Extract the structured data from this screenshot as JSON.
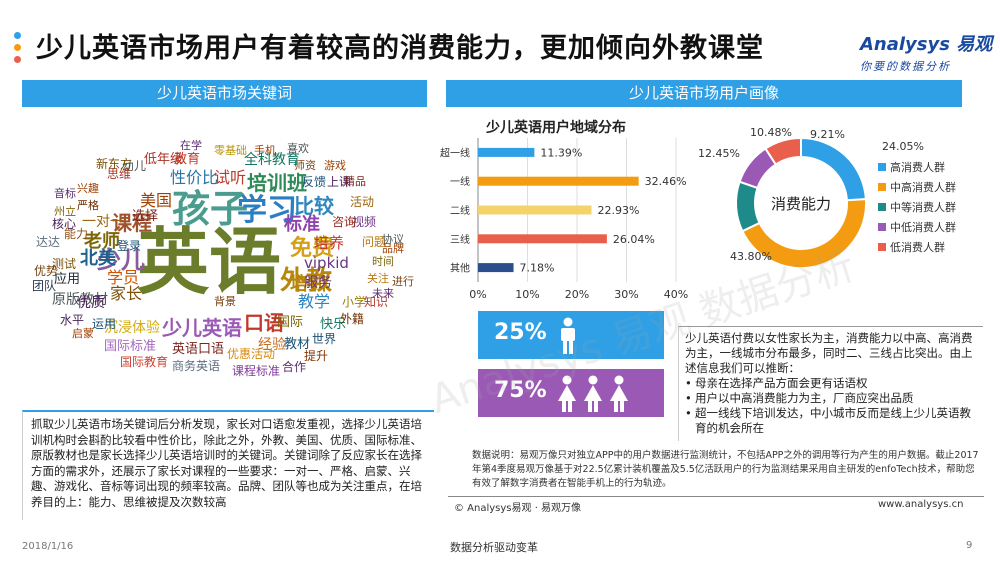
{
  "page": {
    "title": "少儿英语市场用户有着较高的消费能力，更加倾向外教课堂",
    "date": "2018/1/16",
    "slogan": "数据分析驱动变革",
    "page_number": "9"
  },
  "logo": {
    "brand": "Analysys 易观",
    "tagline": "你要的数据分析"
  },
  "watermark": "Analysys 易观 数据分析",
  "left_section": {
    "header": "少儿英语市场关键词",
    "description": "抓取少儿英语市场关键词后分析发现，家长对口语愈发重视，选择少儿英语培训机构时会斟酌比较看中性价比，除此之外，外教、美国、优质、国际标准、原版教材也是家长选择少儿英语培训时的关键词。关键词除了反应家长在选择方面的需求外，还展示了家长对课程的一些要求：一对一、严格、启蒙、兴趣、游戏化、音标等词出现的频率较高。品牌、团队等也成为关注重点，在培养目的上：能力、思维被提及次数较高"
  },
  "wordcloud": [
    {
      "text": "英语",
      "color": "#6b7d2a"
    },
    {
      "text": "孩子",
      "color": "#4a9c8f"
    },
    {
      "text": "学习",
      "color": "#2b7fc0"
    },
    {
      "text": "外教",
      "color": "#b8860b"
    },
    {
      "text": "少儿",
      "color": "#8a5a9e"
    },
    {
      "text": "课程",
      "color": "#a0522d"
    },
    {
      "text": "少儿英语",
      "color": "#9b59b6"
    },
    {
      "text": "口语",
      "color": "#c0392b"
    },
    {
      "text": "免费",
      "color": "#d4a017"
    },
    {
      "text": "比较",
      "color": "#2e86c1"
    },
    {
      "text": "培训班",
      "color": "#2e8b57"
    },
    {
      "text": "标准",
      "color": "#8e44ad"
    },
    {
      "text": "培训",
      "color": "#b8860b"
    },
    {
      "text": "老师",
      "color": "#7d6608"
    },
    {
      "text": "北美",
      "color": "#1f618d"
    },
    {
      "text": "美国",
      "color": "#a04000"
    },
    {
      "text": "性价比",
      "color": "#2874a6"
    },
    {
      "text": "试听",
      "color": "#c0392b"
    },
    {
      "text": "全科教育",
      "color": "#117864"
    },
    {
      "text": "vipkid",
      "color": "#6c3483"
    },
    {
      "text": "培养",
      "color": "#c0392b"
    },
    {
      "text": "服务",
      "color": "#6c3483"
    },
    {
      "text": "教学",
      "color": "#2e86c1"
    },
    {
      "text": "家长",
      "color": "#7e5109"
    },
    {
      "text": "学员",
      "color": "#d35400"
    },
    {
      "text": "原版教材",
      "color": "#4d5656"
    },
    {
      "text": "沉浸体验",
      "color": "#d4ac0d"
    },
    {
      "text": "英语口语",
      "color": "#7b241c"
    },
    {
      "text": "国际标准",
      "color": "#a569bd"
    },
    {
      "text": "国际教育",
      "color": "#cb4335"
    },
    {
      "text": "商务英语",
      "color": "#5d6d7e"
    },
    {
      "text": "课程标准",
      "color": "#7d3c98"
    },
    {
      "text": "优惠活动",
      "color": "#d68910"
    },
    {
      "text": "经验",
      "color": "#ca6f1e"
    },
    {
      "text": "教材",
      "color": "#1a5276"
    },
    {
      "text": "国际",
      "color": "#7d6608"
    },
    {
      "text": "快乐",
      "color": "#117a65"
    },
    {
      "text": "外籍",
      "color": "#6e2c00"
    },
    {
      "text": "小学",
      "color": "#9a7d0a"
    },
    {
      "text": "知识",
      "color": "#b03a2e"
    },
    {
      "text": "世界",
      "color": "#1b4f72"
    },
    {
      "text": "提升",
      "color": "#873600"
    },
    {
      "text": "合作",
      "color": "#5b2c6f"
    },
    {
      "text": "优质",
      "color": "#4a235a"
    },
    {
      "text": "应用",
      "color": "#1b2631"
    },
    {
      "text": "测试",
      "color": "#7e5109"
    },
    {
      "text": "能力",
      "color": "#935116"
    },
    {
      "text": "达达",
      "color": "#5d6d7e"
    },
    {
      "text": "核心",
      "color": "#4a235a"
    },
    {
      "text": "优势",
      "color": "#784212"
    },
    {
      "text": "团队",
      "color": "#2c3e50"
    },
    {
      "text": "兴趣",
      "color": "#a04000"
    },
    {
      "text": "音标",
      "color": "#5b2c6f"
    },
    {
      "text": "严格",
      "color": "#6e2c00"
    },
    {
      "text": "思维",
      "color": "#a93226"
    },
    {
      "text": "登录",
      "color": "#1a5276"
    },
    {
      "text": "选择",
      "color": "#7b241c"
    },
    {
      "text": "一对一",
      "color": "#9c640c"
    },
    {
      "text": "幼儿",
      "color": "#4d5656"
    },
    {
      "text": "新东方",
      "color": "#7e5109"
    },
    {
      "text": "低年级",
      "color": "#a93226"
    },
    {
      "text": "教育",
      "color": "#c0392b"
    },
    {
      "text": "在学",
      "color": "#5b2c6f"
    },
    {
      "text": "零基础",
      "color": "#b7950b"
    },
    {
      "text": "手机",
      "color": "#a04000"
    },
    {
      "text": "师资",
      "color": "#784212"
    },
    {
      "text": "游戏",
      "color": "#a04000"
    },
    {
      "text": "反馈",
      "color": "#1a5276"
    },
    {
      "text": "上课",
      "color": "#4a235a"
    },
    {
      "text": "精品",
      "color": "#7b241c"
    },
    {
      "text": "活动",
      "color": "#9c640c"
    },
    {
      "text": "视频",
      "color": "#6c3483"
    },
    {
      "text": "咨询",
      "color": "#922b21"
    },
    {
      "text": "问题",
      "color": "#b9770e"
    },
    {
      "text": "协议",
      "color": "#4d5656"
    },
    {
      "text": "时间",
      "color": "#7d6608"
    },
    {
      "text": "品牌",
      "color": "#a04000"
    },
    {
      "text": "关注",
      "color": "#b9770e"
    },
    {
      "text": "进行",
      "color": "#784212"
    },
    {
      "text": "未来",
      "color": "#5b2c6f"
    },
    {
      "text": "运用",
      "color": "#1a5276"
    },
    {
      "text": "水平",
      "color": "#4a235a"
    },
    {
      "text": "启蒙",
      "color": "#a04000"
    },
    {
      "text": "背景",
      "color": "#784212"
    },
    {
      "text": "州立",
      "color": "#7d6608"
    },
    {
      "text": "喜欢",
      "color": "#4d5656"
    }
  ],
  "right_section": {
    "header": "少儿英语市场用户画像",
    "summary": "少儿英语付费以女性家长为主，消费能力以中高、高消费为主，一线城市分布最多，同时二、三线占比突出。由上述信息我们可以推断：",
    "bullets": [
      "母亲在选择产品方面会更有话语权",
      "用户以中高消费能力为主，厂商应突出品质",
      "超一线线下培训发达，中小城市反而是线上少儿英语教育的机会所在"
    ],
    "male_percent": "25%",
    "female_percent": "75%",
    "note": "数据说明：易观万像只对独立APP中的用户数据进行监测统计，不包括APP之外的调用等行为产生的用户数据。截止2017年第4季度易观万像基于对22.5亿累计装机覆盖及5.5亿活跃用户的行为监测结果采用自主研发的enfoTech技术，帮助您有效了解数字消费者在智能手机上的行为轨迹。",
    "copyright": "© Analysys易观 · 易观万像",
    "website": "www.analysys.cn"
  },
  "chart_data": [
    {
      "type": "bar",
      "orientation": "horizontal",
      "title": "少儿英语用户地域分布",
      "categories": [
        "超一线",
        "一线",
        "二线",
        "三线",
        "其他"
      ],
      "values": [
        11.39,
        32.46,
        22.93,
        26.04,
        7.18
      ],
      "value_labels": [
        "11.39%",
        "32.46%",
        "22.93%",
        "26.04%",
        "7.18%"
      ],
      "colors": [
        "#2fa0e6",
        "#f39c12",
        "#f5d36b",
        "#e8604c",
        "#2b4f8c"
      ],
      "xlim": [
        0,
        40
      ],
      "ticks": [
        "0%",
        "10%",
        "20%",
        "30%",
        "40%"
      ],
      "grid": true
    },
    {
      "type": "pie",
      "donut": true,
      "center_label": "消费能力",
      "labels": [
        "高消费人群",
        "中高消费人群",
        "中等消费人群",
        "中低消费人群",
        "低消费人群"
      ],
      "values": [
        24.05,
        43.8,
        12.45,
        10.48,
        9.21
      ],
      "value_labels": [
        "24.05%",
        "43.80%",
        "12.45%",
        "10.48%",
        "9.21%"
      ],
      "colors": [
        "#2fa0e6",
        "#f39c12",
        "#1f8a8a",
        "#9b59b6",
        "#e8604c"
      ],
      "legend": "right"
    }
  ]
}
